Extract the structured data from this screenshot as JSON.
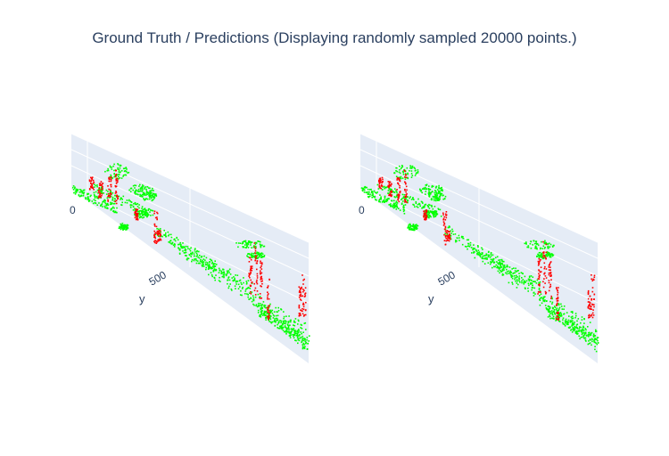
{
  "title": "Ground Truth / Predictions (Displaying randomly sampled 20000 points.)",
  "colors": {
    "pane": "#e5ecf6",
    "grid": "#ffffff",
    "ground": "#00ff00",
    "object": "#ff0000",
    "text": "#2a3f5f"
  },
  "chart_data": [
    {
      "type": "scatter3d",
      "axis": {
        "title": "y",
        "ticks": [
          "0",
          "500"
        ]
      },
      "series": [
        {
          "color": "#00ff00"
        },
        {
          "color": "#ff0000"
        }
      ]
    },
    {
      "type": "scatter3d",
      "axis": {
        "title": "y",
        "ticks": [
          "0",
          "500"
        ]
      },
      "series": [
        {
          "color": "#00ff00"
        },
        {
          "color": "#ff0000"
        }
      ]
    }
  ]
}
